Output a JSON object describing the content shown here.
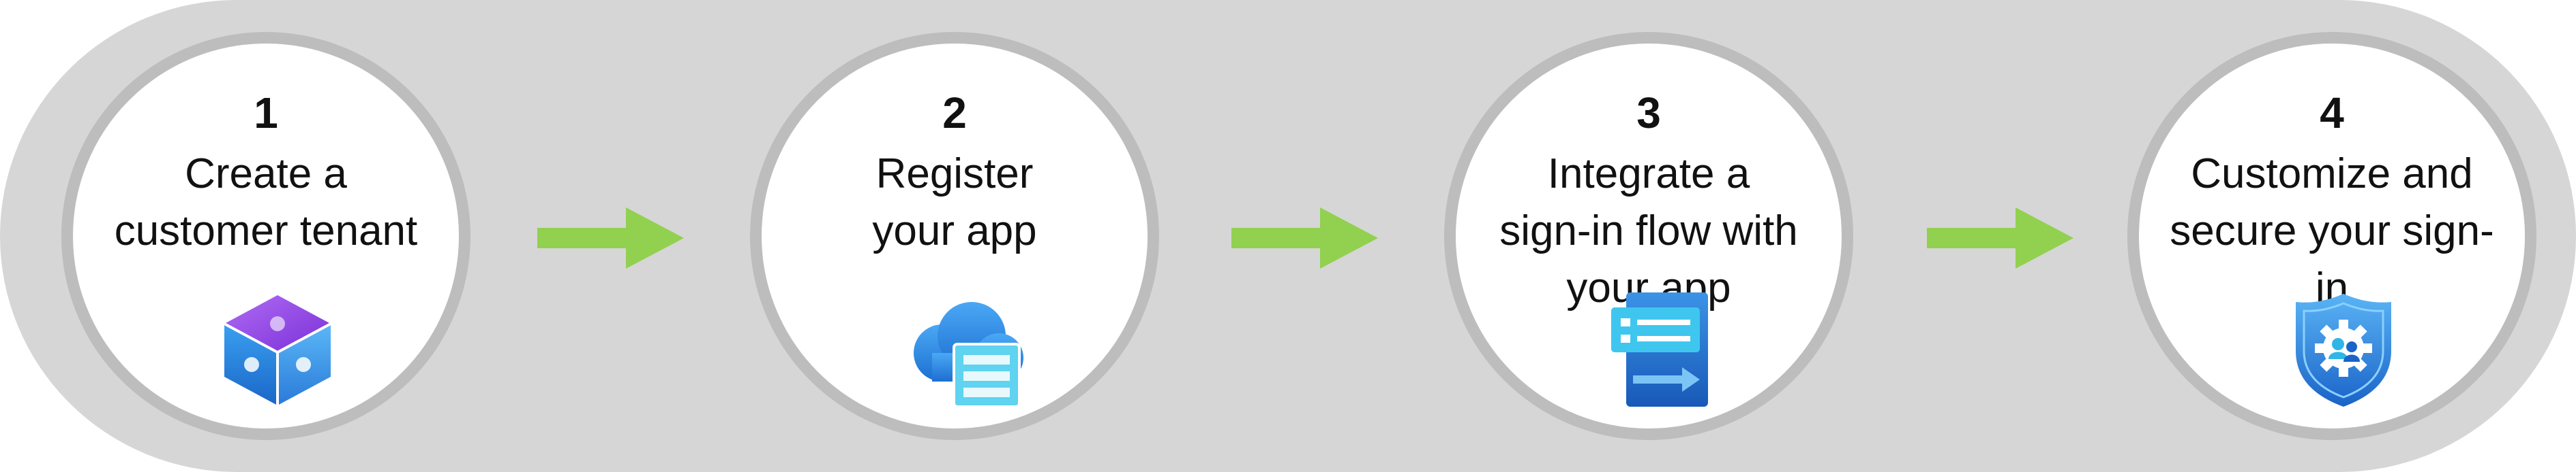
{
  "steps": [
    {
      "number": "1",
      "label": "Create a\ncustomer tenant",
      "icon": "puzzle-cube-icon"
    },
    {
      "number": "2",
      "label": "Register\nyour app",
      "icon": "cloud-app-registration-icon"
    },
    {
      "number": "3",
      "label": "Integrate a\nsign-in flow with\nyour app",
      "icon": "sign-in-flow-icon"
    },
    {
      "number": "4",
      "label": "Customize and\nsecure your sign-in",
      "icon": "shield-gear-users-icon"
    }
  ],
  "colors": {
    "band": "#d6d6d6",
    "circle_border": "#bdbdbd",
    "arrow": "#92d050",
    "icon_blue": "#2f8fe8",
    "icon_purple": "#8a3fe0"
  }
}
